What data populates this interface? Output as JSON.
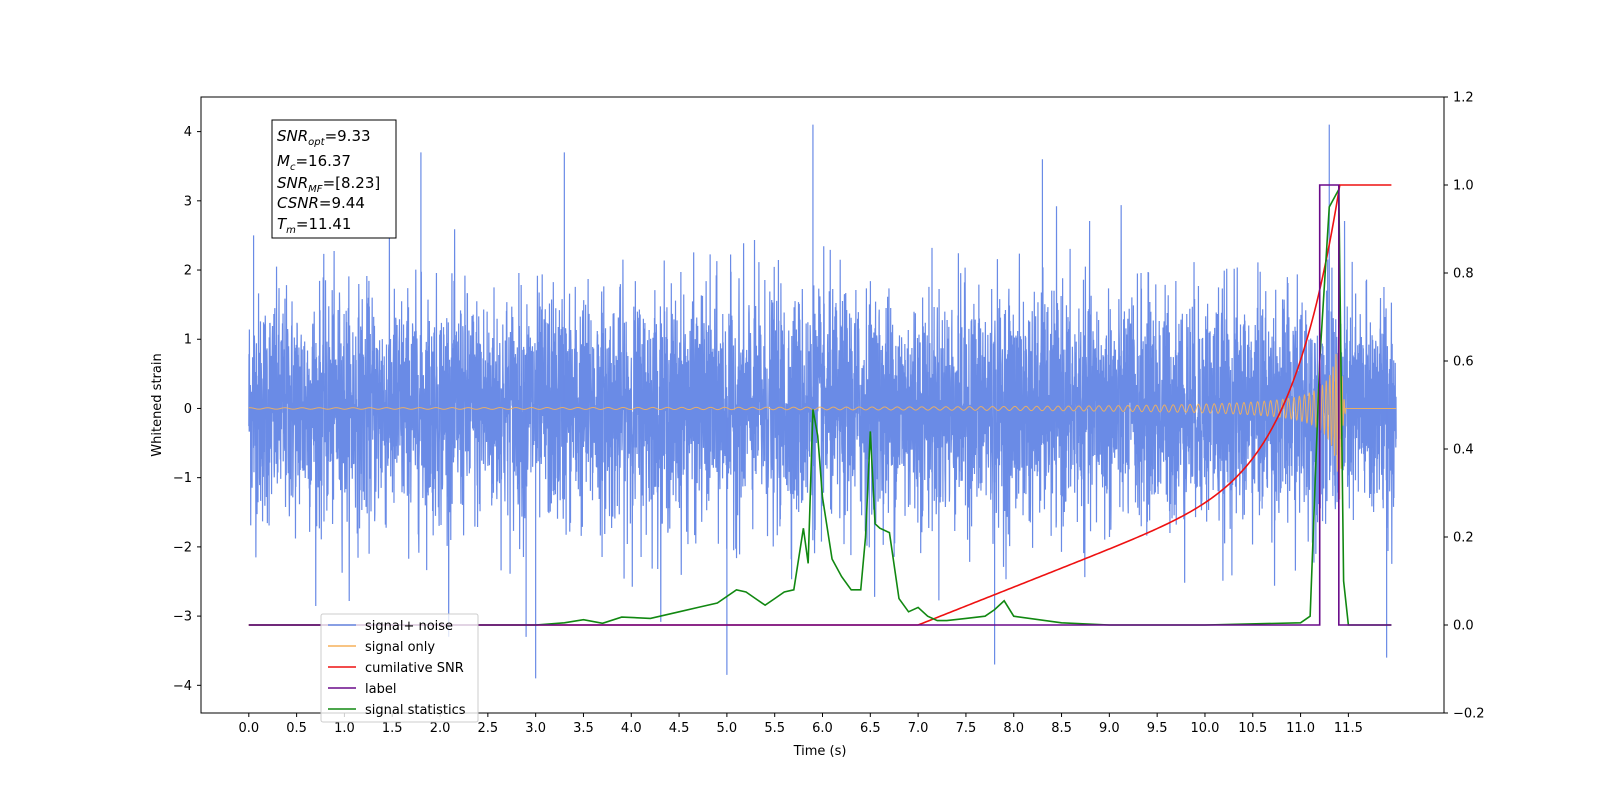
{
  "chart_data": {
    "type": "line",
    "xlabel": "Time (s)",
    "ylabel": "Whitened strain",
    "xlim": [
      -0.5,
      12.5
    ],
    "ylim": [
      -4.4,
      4.5
    ],
    "y2lim": [
      -0.2,
      1.2
    ],
    "xticks": [
      "0.0",
      "0.5",
      "1.0",
      "1.5",
      "2.0",
      "2.5",
      "3.0",
      "3.5",
      "4.0",
      "4.5",
      "5.0",
      "5.5",
      "6.0",
      "6.5",
      "7.0",
      "7.5",
      "8.0",
      "8.5",
      "9.0",
      "9.5",
      "10.0",
      "10.5",
      "11.0",
      "11.5"
    ],
    "yticks": [
      "4",
      "3",
      "2",
      "1",
      "0",
      "−1",
      "−2",
      "−3",
      "−4"
    ],
    "y2ticks": [
      "1.2",
      "1.0",
      "0.8",
      "0.6",
      "0.4",
      "0.2",
      "0.0",
      "−0.2"
    ],
    "colors": {
      "signal_noise": "#6a8be6",
      "signal_only": "#f5b15a",
      "cumulative_snr": "#ee1111",
      "label": "#6a0a8a",
      "signal_statistics": "#118811"
    },
    "annotation": {
      "snr_opt": "=9.33",
      "mc": "=16.37",
      "snr_mf": "=[8.23]",
      "csnr": "=9.44",
      "tm": "=11.41"
    },
    "legend": [
      "signal+ noise",
      "signal only",
      "cumilative SNR",
      "label",
      "signal statistics"
    ],
    "legend_placement": "lower-left",
    "series": [
      {
        "name": "signal statistics",
        "axis": "right",
        "x": [
          0.0,
          1.0,
          2.0,
          2.5,
          3.0,
          3.3,
          3.5,
          3.7,
          3.9,
          4.2,
          4.5,
          4.7,
          4.9,
          5.1,
          5.2,
          5.3,
          5.4,
          5.5,
          5.6,
          5.7,
          5.8,
          5.85,
          5.9,
          5.95,
          6.0,
          6.1,
          6.2,
          6.3,
          6.4,
          6.45,
          6.5,
          6.55,
          6.6,
          6.7,
          6.8,
          6.9,
          7.0,
          7.1,
          7.2,
          7.3,
          7.5,
          7.7,
          7.8,
          7.9,
          8.0,
          8.5,
          9.0,
          10.0,
          11.0,
          11.1,
          11.2,
          11.3,
          11.4,
          11.45,
          11.5,
          11.95
        ],
        "y": [
          0.0,
          0.0,
          0.0,
          0.0,
          0.0,
          0.005,
          0.012,
          0.004,
          0.018,
          0.015,
          0.03,
          0.04,
          0.05,
          0.08,
          0.075,
          0.06,
          0.045,
          0.06,
          0.075,
          0.08,
          0.22,
          0.14,
          0.49,
          0.43,
          0.29,
          0.15,
          0.11,
          0.08,
          0.08,
          0.2,
          0.44,
          0.23,
          0.22,
          0.21,
          0.06,
          0.03,
          0.04,
          0.02,
          0.01,
          0.01,
          0.015,
          0.02,
          0.035,
          0.055,
          0.02,
          0.005,
          0.0,
          0.0,
          0.005,
          0.02,
          0.6,
          0.95,
          0.99,
          0.1,
          0.0,
          0.0
        ]
      },
      {
        "name": "label",
        "axis": "right",
        "x": [
          0.0,
          11.2,
          11.2,
          11.4,
          11.4,
          11.95
        ],
        "y": [
          0.0,
          0.0,
          1.0,
          1.0,
          0.0,
          0.0
        ]
      }
    ],
    "cumulative_snr": {
      "axis": "right",
      "start_x": 7.0,
      "end_x": 11.41,
      "plateau_end_x": 11.95,
      "start_y": 0.0,
      "end_y": 1.0
    },
    "signal_only": {
      "axis": "left",
      "amp_max": 2.1,
      "chirp_end": 11.41
    },
    "signal_noise": {
      "axis": "left",
      "x_range": [
        0.0,
        12.0
      ],
      "typical_range": [
        -2.5,
        2.5
      ],
      "extremes": [
        4.1,
        -3.9
      ]
    }
  }
}
